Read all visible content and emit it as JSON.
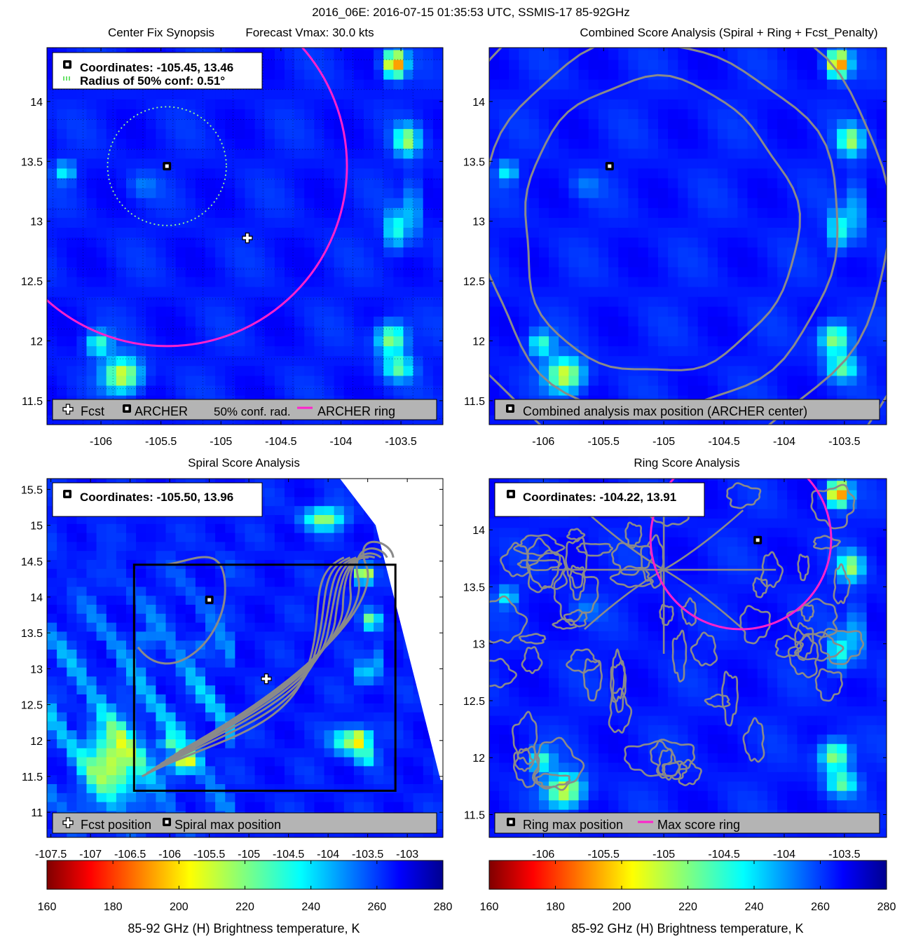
{
  "figure_title": "2016_06E: 2016-07-15 01:35:53 UTC, SSMIS-17 85-92GHz",
  "colors": {
    "archer_ring": "#ff22cc",
    "contour": "#8a8a8a",
    "legend_bg": "#b4b4b4",
    "conf_circle": "#9cff8c",
    "box": "#000000"
  },
  "chart_data": [
    {
      "type": "heatmap",
      "title": "Center Fix Synopsis",
      "subtitle": "Forecast Vmax: 30.0 kts",
      "xlabel": "",
      "ylabel": "",
      "xlim": [
        -106.45,
        -103.15
      ],
      "ylim": [
        11.3,
        14.45
      ],
      "x_ticks": [
        "-106",
        "-105.5",
        "-105",
        "-104.5",
        "-104",
        "-103.5"
      ],
      "x_tick_values": [
        -106,
        -105.5,
        -105,
        -104.5,
        -104,
        -103.5
      ],
      "y_ticks": [
        "11.5",
        "12",
        "12.5",
        "13",
        "13.5",
        "14"
      ],
      "y_tick_values": [
        11.5,
        12,
        12.5,
        13,
        13.5,
        14
      ],
      "info_box": [
        "Coordinates: -105.45, 13.46",
        "Radius of 50% conf: 0.51°"
      ],
      "legend": [
        "Fcst",
        "ARCHER",
        "50% conf. rad.",
        "ARCHER ring"
      ],
      "archer_center": [
        -105.45,
        13.46
      ],
      "fcst_position": [
        -104.78,
        12.86
      ],
      "conf_radius_deg": 0.51,
      "archer_ring": {
        "center": [
          -105.45,
          13.46
        ],
        "radius_deg": 1.5
      }
    },
    {
      "type": "heatmap",
      "title": "Combined Score Analysis (Spiral + Ring + Fcst_Penalty)",
      "xlim": [
        -106.45,
        -103.15
      ],
      "ylim": [
        11.3,
        14.45
      ],
      "x_ticks": [
        "-106",
        "-105.5",
        "-105",
        "-104.5",
        "-104",
        "-103.5"
      ],
      "x_tick_values": [
        -106,
        -105.5,
        -105,
        -104.5,
        -104,
        -103.5
      ],
      "y_ticks": [
        "11.5",
        "12",
        "12.5",
        "13",
        "13.5",
        "14"
      ],
      "y_tick_values": [
        11.5,
        12,
        12.5,
        13,
        13.5,
        14
      ],
      "legend": [
        "Combined analysis max position (ARCHER center)"
      ],
      "max_position": [
        -105.45,
        13.46
      ]
    },
    {
      "type": "heatmap",
      "title": "Spiral Score Analysis",
      "xlim": [
        -107.55,
        -102.55
      ],
      "ylim": [
        10.65,
        15.65
      ],
      "x_ticks": [
        "-107.5",
        "-107",
        "-106.5",
        "-106",
        "-105.5",
        "-105",
        "-104.5",
        "-104",
        "-103.5",
        "-103"
      ],
      "x_tick_values": [
        -107.5,
        -107,
        -106.5,
        -106,
        -105.5,
        -105,
        -104.5,
        -104,
        -103.5,
        -103
      ],
      "y_ticks": [
        "11",
        "11.5",
        "12",
        "12.5",
        "13",
        "13.5",
        "14",
        "14.5",
        "15",
        "15.5"
      ],
      "y_tick_values": [
        11,
        11.5,
        12,
        12.5,
        13,
        13.5,
        14,
        14.5,
        15,
        15.5
      ],
      "info_box": [
        "Coordinates: -105.50, 13.96"
      ],
      "legend": [
        "Fcst position",
        "Spiral max position"
      ],
      "max_position": [
        -105.5,
        13.96
      ],
      "fcst_position": [
        -104.78,
        12.86
      ],
      "search_box": {
        "x": [
          -106.45,
          -103.15
        ],
        "y": [
          11.3,
          14.45
        ]
      }
    },
    {
      "type": "heatmap",
      "title": "Ring Score Analysis",
      "xlim": [
        -106.45,
        -103.15
      ],
      "ylim": [
        11.3,
        14.45
      ],
      "x_ticks": [
        "-106",
        "-105.5",
        "-105",
        "-104.5",
        "-104",
        "-103.5"
      ],
      "x_tick_values": [
        -106,
        -105.5,
        -105,
        -104.5,
        -104,
        -103.5
      ],
      "y_ticks": [
        "11.5",
        "12",
        "12.5",
        "13",
        "13.5",
        "14"
      ],
      "y_tick_values": [
        11.5,
        12,
        12.5,
        13,
        13.5,
        14
      ],
      "info_box": [
        "Coordinates: -104.22, 13.91"
      ],
      "legend": [
        "Ring max position",
        "Max score ring"
      ],
      "max_position": [
        -104.22,
        13.91
      ],
      "max_score_ring": {
        "center": [
          -104.36,
          13.92
        ],
        "radius_deg": 0.75
      }
    }
  ],
  "colorbars": [
    {
      "label": "85-92 GHz (H) Brightness temperature, K",
      "ticks": [
        "160",
        "180",
        "200",
        "220",
        "240",
        "260",
        "280"
      ],
      "range": [
        160,
        280
      ],
      "colormap": "jet_reversed"
    },
    {
      "label": "85-92 GHz (H) Brightness temperature, K",
      "ticks": [
        "160",
        "180",
        "200",
        "220",
        "240",
        "260",
        "280"
      ],
      "range": [
        160,
        280
      ],
      "colormap": "jet_reversed"
    }
  ]
}
